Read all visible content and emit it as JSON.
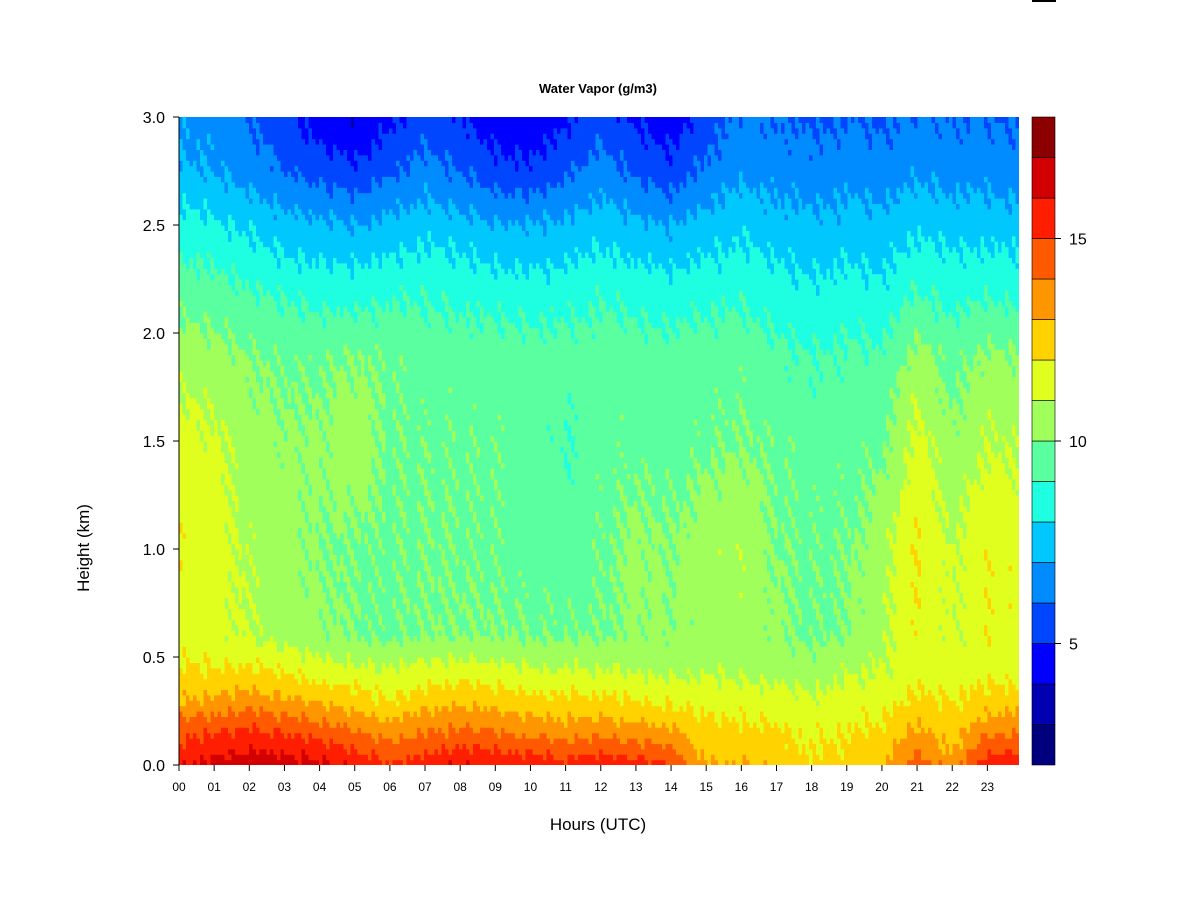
{
  "chart_data": {
    "type": "heatmap",
    "title": "Water Vapor (g/m3)",
    "xlabel": "Hours (UTC)",
    "ylabel": "Height (km)",
    "xlim": [
      0,
      23.9
    ],
    "ylim": [
      0,
      3.0
    ],
    "x_ticks": [
      "00",
      "01",
      "02",
      "03",
      "04",
      "05",
      "06",
      "07",
      "08",
      "09",
      "10",
      "11",
      "12",
      "13",
      "14",
      "15",
      "16",
      "17",
      "18",
      "19",
      "20",
      "21",
      "22",
      "23"
    ],
    "y_ticks": [
      "0.0",
      "0.5",
      "1.0",
      "1.5",
      "2.0",
      "2.5",
      "3.0"
    ],
    "colorbar": {
      "levels": [
        2,
        3,
        4,
        5,
        6,
        7,
        8,
        9,
        10,
        11,
        12,
        13,
        14,
        15,
        16,
        17,
        18
      ],
      "ticks": [
        "5",
        "10",
        "15"
      ],
      "tick_values": [
        5,
        10,
        15
      ],
      "colors": [
        "#00007f",
        "#0000b2",
        "#0000ff",
        "#0046ff",
        "#008cff",
        "#00c8ff",
        "#1effe1",
        "#5aff9f",
        "#a0ff5a",
        "#e1ff1e",
        "#ffd200",
        "#ff9600",
        "#ff5a00",
        "#ff1e00",
        "#d20000",
        "#8c0000"
      ]
    },
    "profile_heights_km": [
      0.0,
      0.05,
      0.15,
      0.3,
      0.45,
      0.6,
      1.0,
      1.5,
      1.9,
      2.2,
      2.5,
      2.75,
      3.0
    ],
    "hourly_profiles_gm3": [
      [
        16.0,
        15.5,
        14.8,
        13.0,
        12.0,
        11.5,
        11.8,
        11.5,
        10.5,
        9.5,
        8.5,
        7.2,
        6.8
      ],
      [
        16.4,
        15.8,
        15.0,
        13.2,
        12.0,
        11.3,
        11.6,
        11.2,
        10.4,
        9.4,
        8.2,
        7.0,
        6.5
      ],
      [
        16.8,
        16.2,
        15.2,
        13.5,
        12.1,
        11.0,
        10.8,
        10.5,
        10.0,
        9.0,
        7.8,
        6.6,
        6.0
      ],
      [
        16.5,
        16.0,
        15.0,
        13.2,
        11.8,
        10.6,
        10.4,
        10.2,
        9.8,
        8.8,
        7.4,
        6.0,
        5.2
      ],
      [
        16.2,
        15.7,
        14.6,
        12.8,
        11.5,
        10.2,
        10.0,
        10.2,
        9.8,
        8.6,
        7.2,
        5.6,
        4.4
      ],
      [
        15.8,
        15.3,
        14.2,
        12.5,
        11.2,
        10.0,
        9.9,
        10.6,
        10.0,
        8.5,
        7.0,
        5.2,
        4.0
      ],
      [
        15.2,
        14.6,
        13.6,
        12.0,
        11.0,
        9.8,
        9.8,
        9.9,
        9.8,
        8.8,
        7.3,
        5.8,
        4.8
      ],
      [
        15.6,
        15.0,
        14.0,
        12.5,
        11.3,
        10.0,
        9.9,
        9.8,
        9.6,
        8.8,
        7.6,
        6.4,
        5.6
      ],
      [
        16.0,
        15.4,
        14.3,
        12.8,
        11.4,
        10.0,
        9.9,
        9.8,
        9.6,
        8.7,
        7.4,
        6.0,
        5.0
      ],
      [
        15.9,
        15.3,
        14.1,
        12.6,
        11.2,
        10.0,
        9.8,
        9.8,
        9.5,
        8.5,
        7.1,
        5.4,
        4.4
      ],
      [
        15.6,
        15.0,
        13.8,
        12.3,
        11.0,
        9.9,
        9.6,
        9.6,
        9.5,
        8.4,
        7.0,
        5.2,
        4.2
      ],
      [
        15.4,
        14.8,
        13.6,
        12.2,
        11.0,
        9.9,
        9.5,
        9.0,
        9.4,
        8.5,
        7.2,
        5.8,
        4.8
      ],
      [
        15.8,
        15.1,
        13.8,
        12.3,
        11.0,
        9.9,
        9.8,
        9.7,
        9.6,
        8.8,
        7.6,
        6.4,
        5.6
      ],
      [
        15.4,
        14.8,
        13.5,
        12.0,
        10.8,
        10.2,
        10.3,
        9.7,
        9.5,
        8.6,
        7.2,
        5.8,
        4.8
      ],
      [
        15.0,
        14.4,
        13.2,
        11.8,
        10.6,
        10.2,
        10.0,
        9.6,
        9.4,
        8.4,
        7.0,
        5.4,
        4.4
      ],
      [
        13.2,
        12.8,
        12.4,
        11.6,
        10.8,
        10.4,
        10.6,
        9.8,
        9.6,
        8.6,
        7.4,
        6.2,
        5.4
      ],
      [
        13.0,
        12.7,
        12.3,
        11.5,
        10.7,
        10.6,
        10.8,
        10.0,
        9.6,
        8.7,
        7.8,
        6.8,
        6.2
      ],
      [
        12.8,
        12.5,
        12.2,
        11.4,
        10.6,
        10.2,
        10.0,
        9.8,
        9.2,
        8.4,
        7.4,
        6.6,
        6.0
      ],
      [
        12.2,
        12.0,
        11.8,
        11.2,
        10.4,
        9.8,
        9.8,
        9.6,
        9.0,
        8.2,
        7.2,
        6.4,
        5.8
      ],
      [
        12.4,
        12.2,
        12.0,
        11.5,
        10.8,
        10.0,
        9.9,
        9.6,
        9.2,
        8.4,
        7.4,
        6.6,
        6.0
      ],
      [
        13.0,
        12.6,
        12.2,
        11.6,
        11.0,
        10.8,
        10.6,
        9.8,
        9.2,
        8.2,
        7.3,
        6.4,
        5.8
      ],
      [
        14.6,
        14.0,
        13.2,
        12.2,
        11.6,
        11.8,
        12.0,
        11.4,
        10.4,
        9.0,
        7.8,
        6.8,
        6.2
      ],
      [
        13.4,
        13.0,
        12.6,
        12.0,
        11.4,
        11.0,
        11.0,
        10.2,
        9.6,
        8.6,
        7.6,
        6.6,
        6.0
      ],
      [
        15.6,
        15.0,
        13.8,
        12.4,
        11.6,
        11.8,
        11.8,
        11.0,
        10.2,
        8.8,
        7.6,
        6.6,
        6.0
      ],
      [
        15.8,
        15.2,
        14.0,
        12.5,
        11.6,
        11.6,
        11.6,
        10.8,
        10.0,
        8.6,
        7.4,
        6.4,
        5.8
      ]
    ]
  }
}
